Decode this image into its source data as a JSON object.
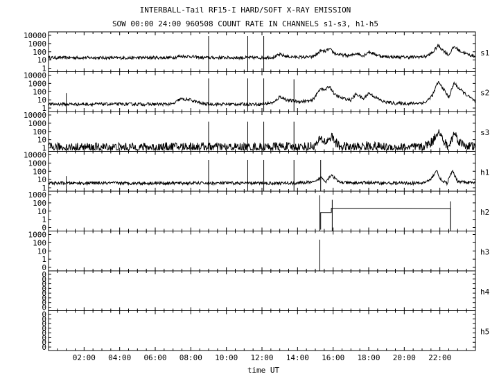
{
  "chart_data": {
    "type": "line",
    "title": "INTERBALL-Tail RF15-I HARD/SOFT X-RAY EMISSION",
    "subtitle": "SOW 00:00 24:00 960508  COUNT RATE IN CHANNELS s1-s3, h1-h5",
    "xlabel": "time UT",
    "x_unit": "hours UT",
    "xlim": [
      0,
      24
    ],
    "x_tick_labels": [
      "02:00",
      "04:00",
      "06:00",
      "08:00",
      "10:00",
      "12:00",
      "14:00",
      "16:00",
      "18:00",
      "20:00",
      "22:00"
    ],
    "y_scale": "log",
    "grid": false,
    "panels": [
      {
        "name": "s1",
        "y_tick_labels": [
          "10000",
          "1000",
          "100",
          "10",
          "1"
        ],
        "ylim": [
          1,
          10000
        ],
        "series": [
          {
            "x": [
              0,
              2,
              4,
              6,
              7,
              7.4,
              8,
              8.6,
              9,
              10,
              11,
              12,
              12.7,
              13,
              13.4,
              14,
              14.8,
              15.1,
              15.3,
              15.5,
              15.8,
              16.1,
              16.5,
              17,
              17.3,
              17.7,
              18,
              18.3,
              18.8,
              19.5,
              20.5,
              21.2,
              21.6,
              21.9,
              22.2,
              22.5,
              22.8,
              23.1,
              23.5,
              24
            ],
            "y": [
              30,
              30,
              28,
              30,
              30,
              45,
              40,
              30,
              30,
              30,
              30,
              30,
              35,
              70,
              40,
              35,
              35,
              80,
              200,
              150,
              300,
              90,
              60,
              50,
              100,
              50,
              150,
              80,
              40,
              35,
              35,
              40,
              120,
              800,
              200,
              60,
              600,
              200,
              80,
              40
            ]
          }
        ],
        "spikes": [
          {
            "x": 9.0,
            "y": 10000
          },
          {
            "x": 11.2,
            "y": 10000
          },
          {
            "x": 12.1,
            "y": 10000
          }
        ]
      },
      {
        "name": "s2",
        "y_tick_labels": [
          "10000",
          "1000",
          "100",
          "10",
          "1"
        ],
        "ylim": [
          1,
          10000
        ],
        "series": [
          {
            "x": [
              0,
              2,
              4,
              6,
              7,
              7.4,
              8,
              8.6,
              9,
              10,
              11,
              12,
              12.7,
              13,
              13.4,
              14,
              14.8,
              15.1,
              15.3,
              15.5,
              15.8,
              16.1,
              16.5,
              17,
              17.3,
              17.7,
              18,
              18.3,
              18.8,
              19.5,
              20.5,
              21.2,
              21.6,
              21.9,
              22.2,
              22.5,
              22.8,
              23.1,
              23.5,
              24
            ],
            "y": [
              5,
              5,
              5,
              5,
              5,
              20,
              15,
              6,
              5,
              5,
              5,
              5,
              8,
              40,
              15,
              10,
              12,
              80,
              400,
              200,
              600,
              60,
              25,
              15,
              80,
              20,
              100,
              40,
              10,
              6,
              6,
              8,
              60,
              2000,
              300,
              30,
              1500,
              300,
              60,
              10
            ]
          }
        ],
        "spikes": [
          {
            "x": 1.0,
            "y": 100
          },
          {
            "x": 9.0,
            "y": 5000
          },
          {
            "x": 11.2,
            "y": 5000
          },
          {
            "x": 12.1,
            "y": 5000
          },
          {
            "x": 13.8,
            "y": 4000
          }
        ]
      },
      {
        "name": "s3",
        "y_tick_labels": [
          "10000",
          "1000",
          "100",
          "10",
          "1"
        ],
        "ylim": [
          1,
          10000
        ],
        "series": [
          {
            "x": [
              0,
              2,
              4,
              6,
              8,
              10,
              12,
              13,
              14,
              15,
              15.3,
              15.6,
              15.9,
              16.3,
              17,
              18,
              19,
              20,
              21,
              21.6,
              21.9,
              22.2,
              22.5,
              22.8,
              23.2,
              24
            ],
            "y": [
              2,
              2,
              2,
              2,
              2.5,
              2,
              2,
              2.5,
              2,
              3,
              20,
              8,
              40,
              3,
              2,
              3,
              2,
              2,
              2,
              10,
              200,
              10,
              2,
              100,
              5,
              2
            ]
          }
        ],
        "spikes": [
          {
            "x": 9.0,
            "y": 2000
          },
          {
            "x": 11.2,
            "y": 2000
          },
          {
            "x": 12.1,
            "y": 2000
          },
          {
            "x": 13.8,
            "y": 2000
          }
        ]
      },
      {
        "name": "h1",
        "y_tick_labels": [
          "10000",
          "1000",
          "100",
          "10",
          "1"
        ],
        "ylim": [
          1,
          10000
        ],
        "series": [
          {
            "x": [
              0,
              2,
              4,
              6,
              8,
              10,
              12,
              13,
              14,
              15,
              15.3,
              15.6,
              15.9,
              16.3,
              17,
              18,
              19,
              20,
              21,
              21.5,
              21.8,
              22.1,
              22.4,
              22.7,
              23,
              24
            ],
            "y": [
              6,
              6,
              6,
              6,
              6,
              6,
              6,
              6,
              6,
              8,
              30,
              10,
              60,
              8,
              6,
              7,
              6,
              6,
              6,
              15,
              200,
              10,
              6,
              150,
              10,
              6
            ]
          }
        ],
        "spikes": [
          {
            "x": 1.0,
            "y": 40
          },
          {
            "x": 9.0,
            "y": 3000
          },
          {
            "x": 11.2,
            "y": 3000
          },
          {
            "x": 12.1,
            "y": 3000
          },
          {
            "x": 13.8,
            "y": 3000
          },
          {
            "x": 15.3,
            "y": 3000
          }
        ]
      },
      {
        "name": "h2",
        "y_tick_labels": [
          "1000",
          "100",
          "10",
          "1",
          "0"
        ],
        "ylim": [
          0.1,
          1000
        ],
        "series": [
          {
            "x": [
              15.3,
              15.3,
              15.9,
              15.9,
              19.5,
              22.6,
              22.6
            ],
            "y": [
              0.1,
              10,
              10,
              30,
              30,
              27,
              0.1
            ]
          }
        ],
        "spikes": [
          {
            "x": 15.25,
            "y": 1000
          },
          {
            "x": 15.95,
            "y": 300
          },
          {
            "x": 22.6,
            "y": 200
          }
        ]
      },
      {
        "name": "h3",
        "y_tick_labels": [
          "1000",
          "100",
          "10",
          "1",
          "0"
        ],
        "ylim": [
          0.1,
          1000
        ],
        "series": [],
        "spikes": [
          {
            "x": 15.25,
            "y": 300
          }
        ]
      },
      {
        "name": "h4",
        "y_tick_labels": [
          "0",
          "0",
          "0",
          "0",
          "0",
          "0",
          "0",
          "0"
        ],
        "ylim": [
          0,
          1
        ],
        "series": [],
        "spikes": []
      },
      {
        "name": "h5",
        "y_tick_labels": [
          "0",
          "0",
          "0",
          "0",
          "0",
          "0",
          "0",
          "0"
        ],
        "ylim": [
          0,
          1
        ],
        "series": [],
        "spikes": []
      }
    ]
  }
}
